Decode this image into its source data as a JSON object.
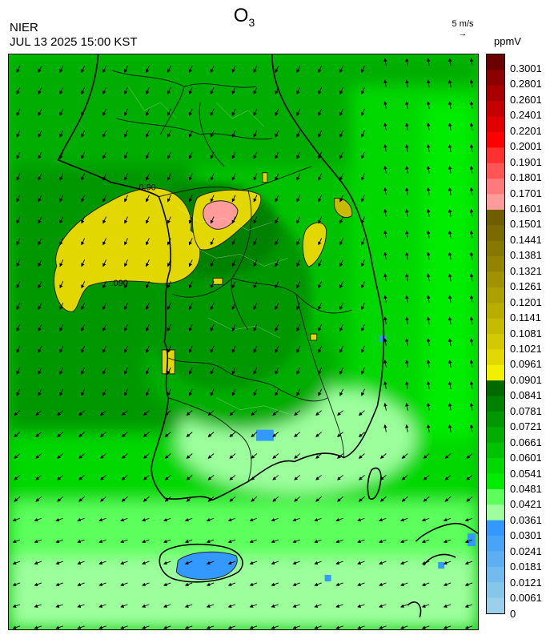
{
  "header": {
    "species": "O",
    "species_sub": "3",
    "agency": "NIER",
    "timestamp": "JUL 13 2025 15:00 KST",
    "wind_ref_label": "5 m/s",
    "wind_ref_arrow": "→",
    "unit": "ppmV"
  },
  "colorbar": {
    "labels": [
      "0.3001",
      "0.2801",
      "0.2601",
      "0.2401",
      "0.2201",
      "0.2001",
      "0.1901",
      "0.1801",
      "0.1701",
      "0.1601",
      "0.1501",
      "0.1441",
      "0.1381",
      "0.1321",
      "0.1261",
      "0.1201",
      "0.1141",
      "0.1081",
      "0.1021",
      "0.0961",
      "0.0901",
      "0.0841",
      "0.0781",
      "0.0721",
      "0.0661",
      "0.0601",
      "0.0541",
      "0.0481",
      "0.0421",
      "0.0361",
      "0.0301",
      "0.0241",
      "0.0181",
      "0.0121",
      "0.0061",
      "0"
    ],
    "colors": [
      "#6b0000",
      "#8c0000",
      "#a80000",
      "#c40000",
      "#e00000",
      "#ff0000",
      "#ff3030",
      "#ff5555",
      "#ff7a7a",
      "#ff9b9b",
      "#6e5e00",
      "#7a6a00",
      "#867700",
      "#938400",
      "#a09200",
      "#aca000",
      "#b9ad00",
      "#c6bb00",
      "#d4c900",
      "#e2d800",
      "#f0f000",
      "#006a00",
      "#008200",
      "#009700",
      "#00ad00",
      "#00c200",
      "#00d800",
      "#00ec00",
      "#5cff5c",
      "#9cff9c",
      "#3399ff",
      "#4aa4f5",
      "#5eaff2",
      "#72bbee",
      "#86c6ea",
      "#9ccfea"
    ]
  },
  "contour_labels": [
    "0.90",
    ".090"
  ]
}
